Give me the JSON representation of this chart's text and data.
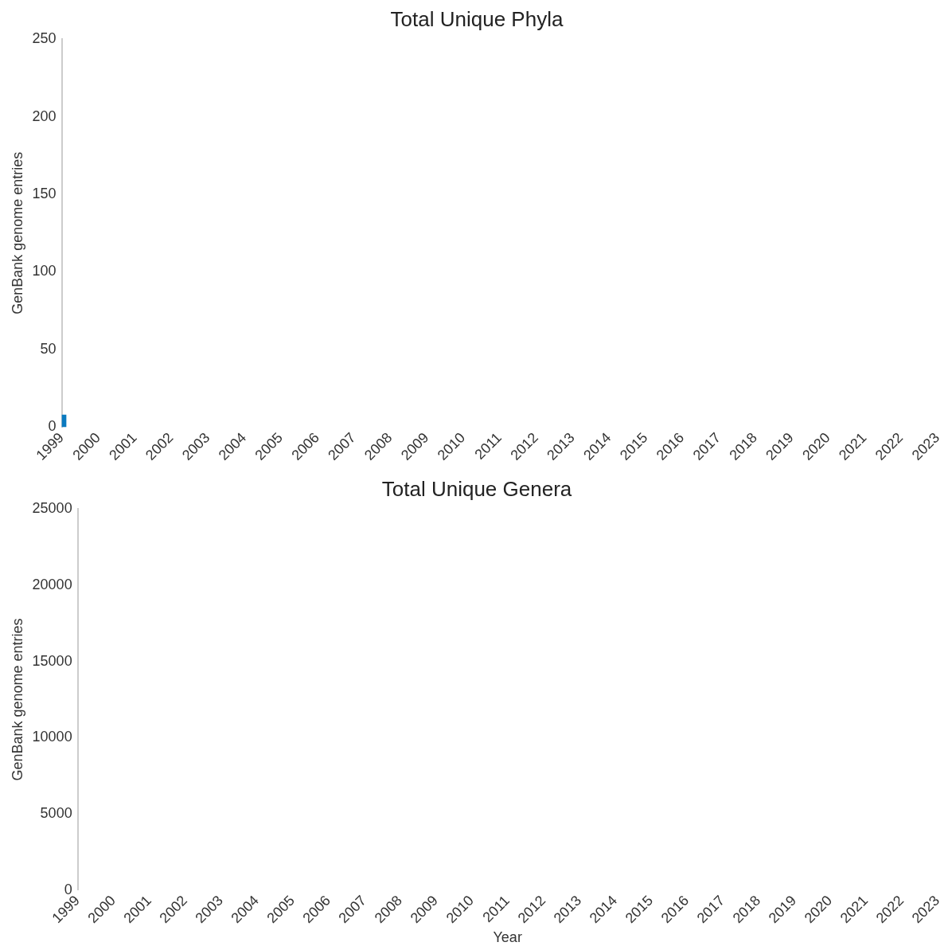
{
  "chart_data": [
    {
      "type": "bar",
      "title": "Total Unique Phyla",
      "ylabel": "GenBank genome entries",
      "categories": [
        "1999",
        "2000",
        "2001",
        "2002",
        "2003",
        "2004",
        "2005",
        "2006",
        "2007",
        "2008",
        "2009",
        "2010",
        "2011",
        "2012",
        "2013",
        "2014",
        "2015",
        "2016",
        "2017",
        "2018",
        "2019",
        "2020",
        "2021",
        "2022",
        "2023"
      ],
      "values": [
        8,
        null,
        null,
        null,
        null,
        null,
        null,
        null,
        null,
        null,
        null,
        null,
        null,
        null,
        null,
        null,
        null,
        null,
        null,
        null,
        null,
        null,
        null,
        null,
        null
      ],
      "color": "#0a7abf",
      "ylim": [
        0,
        250
      ],
      "yticks": [
        0,
        50,
        100,
        150,
        200,
        250
      ],
      "grid": false,
      "legend": false
    },
    {
      "type": "bar",
      "title": "Total Unique Genera",
      "ylabel": "GenBank genome entries",
      "xlabel": "Year",
      "categories": [
        "1999",
        "2000",
        "2001",
        "2002",
        "2003",
        "2004",
        "2005",
        "2006",
        "2007",
        "2008",
        "2009",
        "2010",
        "2011",
        "2012",
        "2013",
        "2014",
        "2015",
        "2016",
        "2017",
        "2018",
        "2019",
        "2020",
        "2021",
        "2022",
        "2023"
      ],
      "values": [
        null,
        null,
        null,
        null,
        null,
        null,
        null,
        null,
        null,
        null,
        null,
        null,
        null,
        null,
        null,
        null,
        null,
        null,
        null,
        null,
        null,
        null,
        null,
        null,
        null
      ],
      "color": "#0a7abf",
      "ylim": [
        0,
        25000
      ],
      "yticks": [
        0,
        5000,
        10000,
        15000,
        20000,
        25000
      ],
      "grid": false,
      "legend": false
    }
  ]
}
